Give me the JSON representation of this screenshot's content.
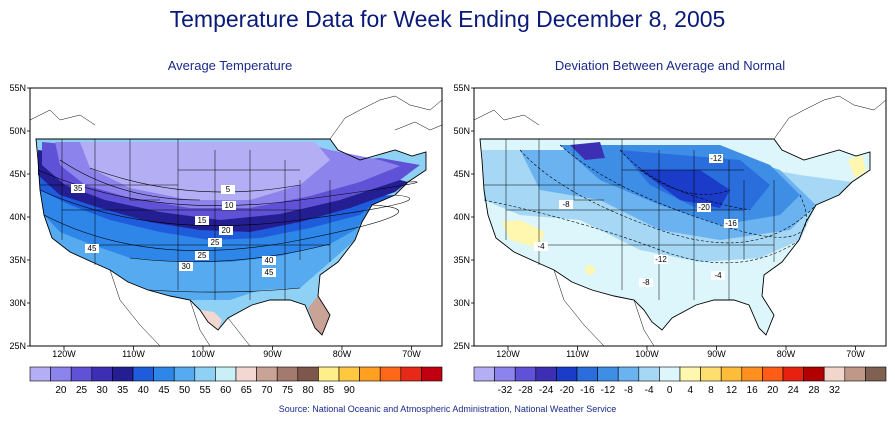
{
  "title": "Temperature Data for Week Ending December 8, 2005",
  "left_panel": {
    "title": "Average Temperature",
    "lat_ticks": [
      "55N",
      "50N",
      "45N",
      "40N",
      "35N",
      "30N",
      "25N"
    ],
    "lon_ticks": [
      "120W",
      "110W",
      "100W",
      "90W",
      "80W",
      "70W"
    ],
    "contour_labels": [
      "5",
      "10",
      "15",
      "20",
      "25",
      "25",
      "30",
      "35",
      "40",
      "45",
      "45"
    ],
    "colorbar": {
      "colors": [
        "#b4aef5",
        "#8c84ec",
        "#5f52d6",
        "#3d2fb3",
        "#241e93",
        "#1e5cdc",
        "#2e86e8",
        "#56aaf0",
        "#8fd1f4",
        "#c8f0f6",
        "#f2d8d0",
        "#c9a396",
        "#a47a6e",
        "#7d564c",
        "#ffef8a",
        "#ffc840",
        "#ffa020",
        "#ff6818",
        "#e82818",
        "#c00010"
      ],
      "labels": [
        "20",
        "25",
        "30",
        "35",
        "40",
        "45",
        "50",
        "55",
        "60",
        "65",
        "70",
        "75",
        "80",
        "85",
        "90"
      ]
    }
  },
  "right_panel": {
    "title": "Deviation Between Average and Normal",
    "lat_ticks": [
      "55N",
      "50N",
      "45N",
      "40N",
      "35N",
      "30N",
      "25N"
    ],
    "lon_ticks": [
      "120W",
      "110W",
      "100W",
      "90W",
      "80W",
      "70W"
    ],
    "contour_labels": [
      "-8",
      "-12",
      "-20",
      "-16",
      "-12",
      "-8",
      "-4",
      "-4"
    ],
    "colorbar": {
      "colors": [
        "#b4aef5",
        "#8c84ec",
        "#5f52d6",
        "#3d2fb3",
        "#1a3cc8",
        "#2a6ede",
        "#3e8ee6",
        "#6ab2f0",
        "#a6d8f6",
        "#dcf6fc",
        "#fff7b0",
        "#ffde70",
        "#ffbc38",
        "#ff9020",
        "#ff5c18",
        "#e82010",
        "#b00000",
        "#f2d6cc",
        "#c09888",
        "#806050"
      ],
      "labels": [
        "-32",
        "-28",
        "-24",
        "-20",
        "-16",
        "-12",
        "-8",
        "-4",
        "0",
        "4",
        "8",
        "12",
        "16",
        "20",
        "24",
        "28",
        "32"
      ]
    }
  },
  "source": "Source:  National Oceanic and Atmospheric Administration, National Weather Service"
}
